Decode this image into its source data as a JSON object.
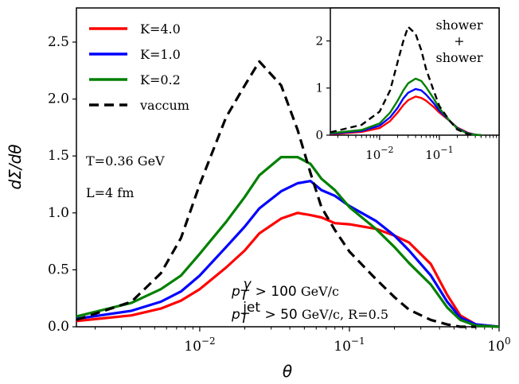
{
  "chart_data": [
    {
      "type": "line",
      "panel": "main",
      "xlabel": "θ",
      "ylabel": "dΣ/dθ",
      "xscale": "log",
      "xlim": [
        0.0015,
        1.0
      ],
      "ylim": [
        0.0,
        2.8
      ],
      "xticks": [
        0.01,
        0.1,
        1.0
      ],
      "xtick_labels": [
        {
          "base": "10",
          "exp": "−2"
        },
        {
          "base": "10",
          "exp": "−1"
        },
        {
          "base": "10",
          "exp": "0"
        }
      ],
      "yticks": [
        0.0,
        0.5,
        1.0,
        1.5,
        2.0,
        2.5
      ],
      "ytick_labels": [
        "0.0",
        "0.5",
        "1.0",
        "1.5",
        "2.0",
        "2.5"
      ],
      "grid": false,
      "legend_position": "top-left",
      "series": [
        {
          "name": "K=4.0",
          "color": "#ff0000",
          "style": "solid",
          "x": [
            0.0015,
            0.0035,
            0.0055,
            0.0075,
            0.01,
            0.015,
            0.02,
            0.025,
            0.035,
            0.045,
            0.055,
            0.065,
            0.08,
            0.1,
            0.15,
            0.2,
            0.25,
            0.35,
            0.45,
            0.55,
            0.7,
            1.0
          ],
          "y": [
            0.05,
            0.1,
            0.16,
            0.23,
            0.33,
            0.52,
            0.67,
            0.82,
            0.95,
            1.0,
            0.98,
            0.96,
            0.91,
            0.9,
            0.86,
            0.8,
            0.74,
            0.55,
            0.28,
            0.1,
            0.02,
            0.0
          ]
        },
        {
          "name": "K=1.0",
          "color": "#0000ff",
          "style": "solid",
          "x": [
            0.0015,
            0.0035,
            0.0055,
            0.0075,
            0.01,
            0.015,
            0.02,
            0.025,
            0.035,
            0.045,
            0.055,
            0.065,
            0.08,
            0.1,
            0.15,
            0.2,
            0.25,
            0.35,
            0.45,
            0.55,
            0.7,
            1.0
          ],
          "y": [
            0.07,
            0.14,
            0.22,
            0.31,
            0.45,
            0.7,
            0.88,
            1.04,
            1.19,
            1.26,
            1.28,
            1.2,
            1.15,
            1.06,
            0.93,
            0.8,
            0.67,
            0.45,
            0.22,
            0.08,
            0.02,
            0.0
          ]
        },
        {
          "name": "K=0.2",
          "color": "#008000",
          "style": "solid",
          "x": [
            0.0015,
            0.0035,
            0.0055,
            0.0075,
            0.01,
            0.015,
            0.02,
            0.025,
            0.035,
            0.045,
            0.055,
            0.065,
            0.08,
            0.1,
            0.15,
            0.2,
            0.25,
            0.35,
            0.45,
            0.55,
            0.7,
            1.0
          ],
          "y": [
            0.09,
            0.21,
            0.33,
            0.45,
            0.64,
            0.92,
            1.14,
            1.33,
            1.49,
            1.49,
            1.43,
            1.3,
            1.2,
            1.05,
            0.86,
            0.7,
            0.56,
            0.37,
            0.17,
            0.06,
            0.01,
            0.0
          ]
        },
        {
          "name": "vaccum",
          "color": "#000000",
          "style": "dashed",
          "x": [
            0.0015,
            0.0035,
            0.0055,
            0.0075,
            0.01,
            0.015,
            0.02,
            0.025,
            0.035,
            0.045,
            0.055,
            0.065,
            0.08,
            0.1,
            0.15,
            0.2,
            0.25,
            0.35,
            0.45,
            0.55,
            0.7
          ],
          "y": [
            0.06,
            0.22,
            0.47,
            0.78,
            1.25,
            1.84,
            2.12,
            2.33,
            2.12,
            1.73,
            1.35,
            1.05,
            0.85,
            0.66,
            0.42,
            0.26,
            0.15,
            0.06,
            0.02,
            0.0,
            0.0
          ]
        }
      ],
      "annotations": [
        "T=0.36 GeV",
        "L=4 fm"
      ],
      "cut_labels": {
        "photon": {
          "symbol": "p",
          "sub": "T",
          "sup": "γ",
          "cut": " > 100",
          "unit": " GeV/c"
        },
        "jet": {
          "symbol": "p",
          "sub": "T",
          "sup": "jet",
          "cut": " > 50",
          "unit": " GeV/c,  R=0.5"
        }
      }
    },
    {
      "type": "line",
      "panel": "inset",
      "xscale": "log",
      "xlim": [
        0.0015,
        1.0
      ],
      "ylim": [
        0.0,
        2.7
      ],
      "xticks": [
        0.01,
        0.1
      ],
      "xtick_labels": [
        {
          "base": "10",
          "exp": "−2"
        },
        {
          "base": "10",
          "exp": "−1"
        }
      ],
      "yticks": [
        0,
        1,
        2
      ],
      "ytick_labels": [
        "0",
        "1",
        "2"
      ],
      "annotation_lines": [
        "shower",
        "+",
        "shower"
      ],
      "series": [
        {
          "name": "K=4.0",
          "color": "#ff0000",
          "style": "solid",
          "x": [
            0.0015,
            0.005,
            0.01,
            0.015,
            0.02,
            0.025,
            0.03,
            0.04,
            0.05,
            0.06,
            0.08,
            0.1,
            0.15,
            0.2,
            0.3,
            0.4,
            0.5
          ],
          "y": [
            0.02,
            0.07,
            0.15,
            0.3,
            0.48,
            0.64,
            0.74,
            0.82,
            0.79,
            0.73,
            0.6,
            0.48,
            0.3,
            0.16,
            0.05,
            0.01,
            0.0
          ]
        },
        {
          "name": "K=1.0",
          "color": "#0000ff",
          "style": "solid",
          "x": [
            0.0015,
            0.005,
            0.01,
            0.015,
            0.02,
            0.025,
            0.03,
            0.04,
            0.05,
            0.06,
            0.08,
            0.1,
            0.15,
            0.2,
            0.3,
            0.4,
            0.5
          ],
          "y": [
            0.03,
            0.09,
            0.2,
            0.38,
            0.58,
            0.78,
            0.9,
            0.98,
            0.95,
            0.86,
            0.68,
            0.52,
            0.3,
            0.15,
            0.04,
            0.01,
            0.0
          ]
        },
        {
          "name": "K=0.2",
          "color": "#008000",
          "style": "solid",
          "x": [
            0.0015,
            0.005,
            0.01,
            0.015,
            0.02,
            0.025,
            0.03,
            0.04,
            0.05,
            0.06,
            0.08,
            0.1,
            0.15,
            0.2,
            0.3,
            0.4,
            0.5
          ],
          "y": [
            0.04,
            0.11,
            0.25,
            0.48,
            0.73,
            0.95,
            1.1,
            1.2,
            1.15,
            1.02,
            0.78,
            0.57,
            0.3,
            0.14,
            0.03,
            0.01,
            0.0
          ]
        },
        {
          "name": "vaccum",
          "color": "#000000",
          "style": "dashed",
          "x": [
            0.0015,
            0.005,
            0.01,
            0.015,
            0.02,
            0.025,
            0.03,
            0.04,
            0.05,
            0.06,
            0.08,
            0.1,
            0.15,
            0.2,
            0.3,
            0.4
          ],
          "y": [
            0.06,
            0.22,
            0.5,
            0.95,
            1.55,
            2.0,
            2.3,
            2.15,
            1.8,
            1.4,
            0.95,
            0.62,
            0.3,
            0.12,
            0.02,
            0.0
          ]
        }
      ]
    }
  ]
}
